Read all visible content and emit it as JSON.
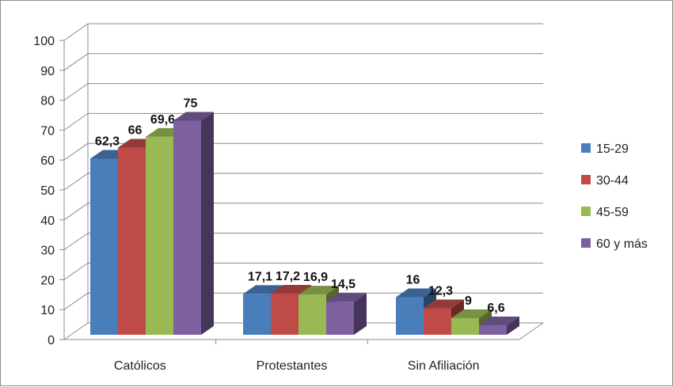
{
  "chart_data": {
    "type": "bar",
    "style": "3d-clustered-column",
    "categories": [
      "Católicos",
      "Protestantes",
      "Sin Afiliación"
    ],
    "series": [
      {
        "name": "15-29",
        "color": "#4a7ebb",
        "values": [
          62.3,
          17.1,
          16
        ],
        "labels": [
          "62,3",
          "17,1",
          "16"
        ]
      },
      {
        "name": "30-44",
        "color": "#be4b48",
        "values": [
          66,
          17.2,
          12.3
        ],
        "labels": [
          "66",
          "17,2",
          "12,3"
        ]
      },
      {
        "name": "45-59",
        "color": "#98b954",
        "values": [
          69.6,
          16.9,
          9
        ],
        "labels": [
          "69,6",
          "16,9",
          "9"
        ]
      },
      {
        "name": "60 y más",
        "color": "#7d60a0",
        "values": [
          75,
          14.5,
          6.6
        ],
        "labels": [
          "75",
          "14,5",
          "6,6"
        ]
      }
    ],
    "y_ticks": [
      "0",
      "10",
      "20",
      "30",
      "40",
      "50",
      "60",
      "70",
      "80",
      "90",
      "100"
    ],
    "ylim": [
      0,
      100
    ],
    "grid": true,
    "legend_position": "right"
  }
}
